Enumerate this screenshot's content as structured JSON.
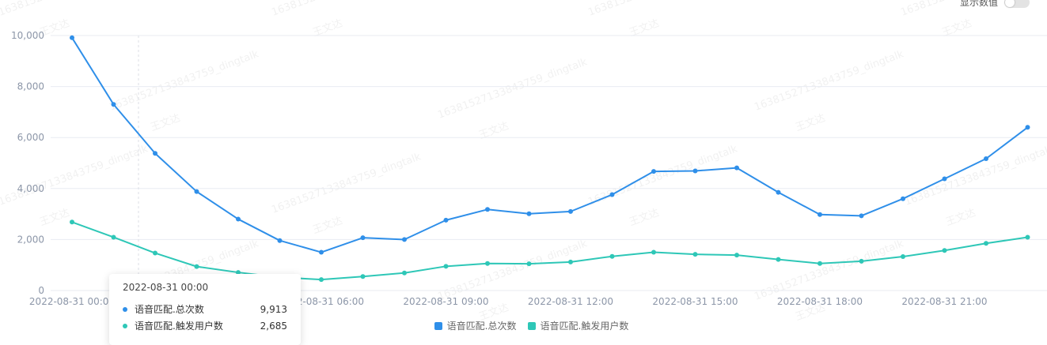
{
  "controls": {
    "show_values_label": "显示数值",
    "show_values_on": false
  },
  "chart_data": {
    "type": "line",
    "x": [
      "00:00",
      "01:00",
      "02:00",
      "03:00",
      "04:00",
      "05:00",
      "06:00",
      "07:00",
      "08:00",
      "09:00",
      "10:00",
      "11:00",
      "12:00",
      "13:00",
      "14:00",
      "15:00",
      "16:00",
      "17:00",
      "18:00",
      "19:00",
      "20:00",
      "21:00",
      "22:00",
      "23:00"
    ],
    "x_tick_labels": [
      {
        "index": 0,
        "label": "2022-08-31 00:00"
      },
      {
        "index": 6,
        "label": "2022-08-31 06:00"
      },
      {
        "index": 9,
        "label": "2022-08-31 09:00"
      },
      {
        "index": 12,
        "label": "2022-08-31 12:00"
      },
      {
        "index": 15,
        "label": "2022-08-31 15:00"
      },
      {
        "index": 18,
        "label": "2022-08-31 18:00"
      },
      {
        "index": 21,
        "label": "2022-08-31 21:00"
      }
    ],
    "y_ticks": [
      0,
      2000,
      4000,
      6000,
      8000,
      10000
    ],
    "y_tick_labels": [
      "0",
      "2,000",
      "4,000",
      "6,000",
      "8,000",
      "10,000"
    ],
    "ylim": [
      0,
      10000
    ],
    "grid": true,
    "legend_position": "bottom-center",
    "series": [
      {
        "name": "语音匹配.总次数",
        "color": "#2f8fe9",
        "values": [
          9913,
          7300,
          5380,
          3880,
          2800,
          1960,
          1500,
          2070,
          2000,
          2760,
          3180,
          3010,
          3100,
          3760,
          4670,
          4690,
          4810,
          3850,
          2980,
          2930,
          3600,
          4380,
          5170,
          6400
        ]
      },
      {
        "name": "语音匹配.触发用户数",
        "color": "#2ec7b7",
        "values": [
          2685,
          2090,
          1470,
          940,
          710,
          520,
          430,
          550,
          690,
          950,
          1060,
          1050,
          1120,
          1340,
          1500,
          1420,
          1390,
          1220,
          1060,
          1150,
          1330,
          1570,
          1850,
          2090
        ]
      }
    ]
  },
  "tooltip": {
    "title": "2022-08-31 00:00",
    "rows": [
      {
        "name": "语音匹配.总次数",
        "value": "9,913",
        "color": "#2f8fe9"
      },
      {
        "name": "语音匹配.触发用户数",
        "value": "2,685",
        "color": "#2ec7b7"
      }
    ]
  },
  "watermark": {
    "line1": "16381527133843759_dingtalk",
    "line2": "王文达"
  }
}
